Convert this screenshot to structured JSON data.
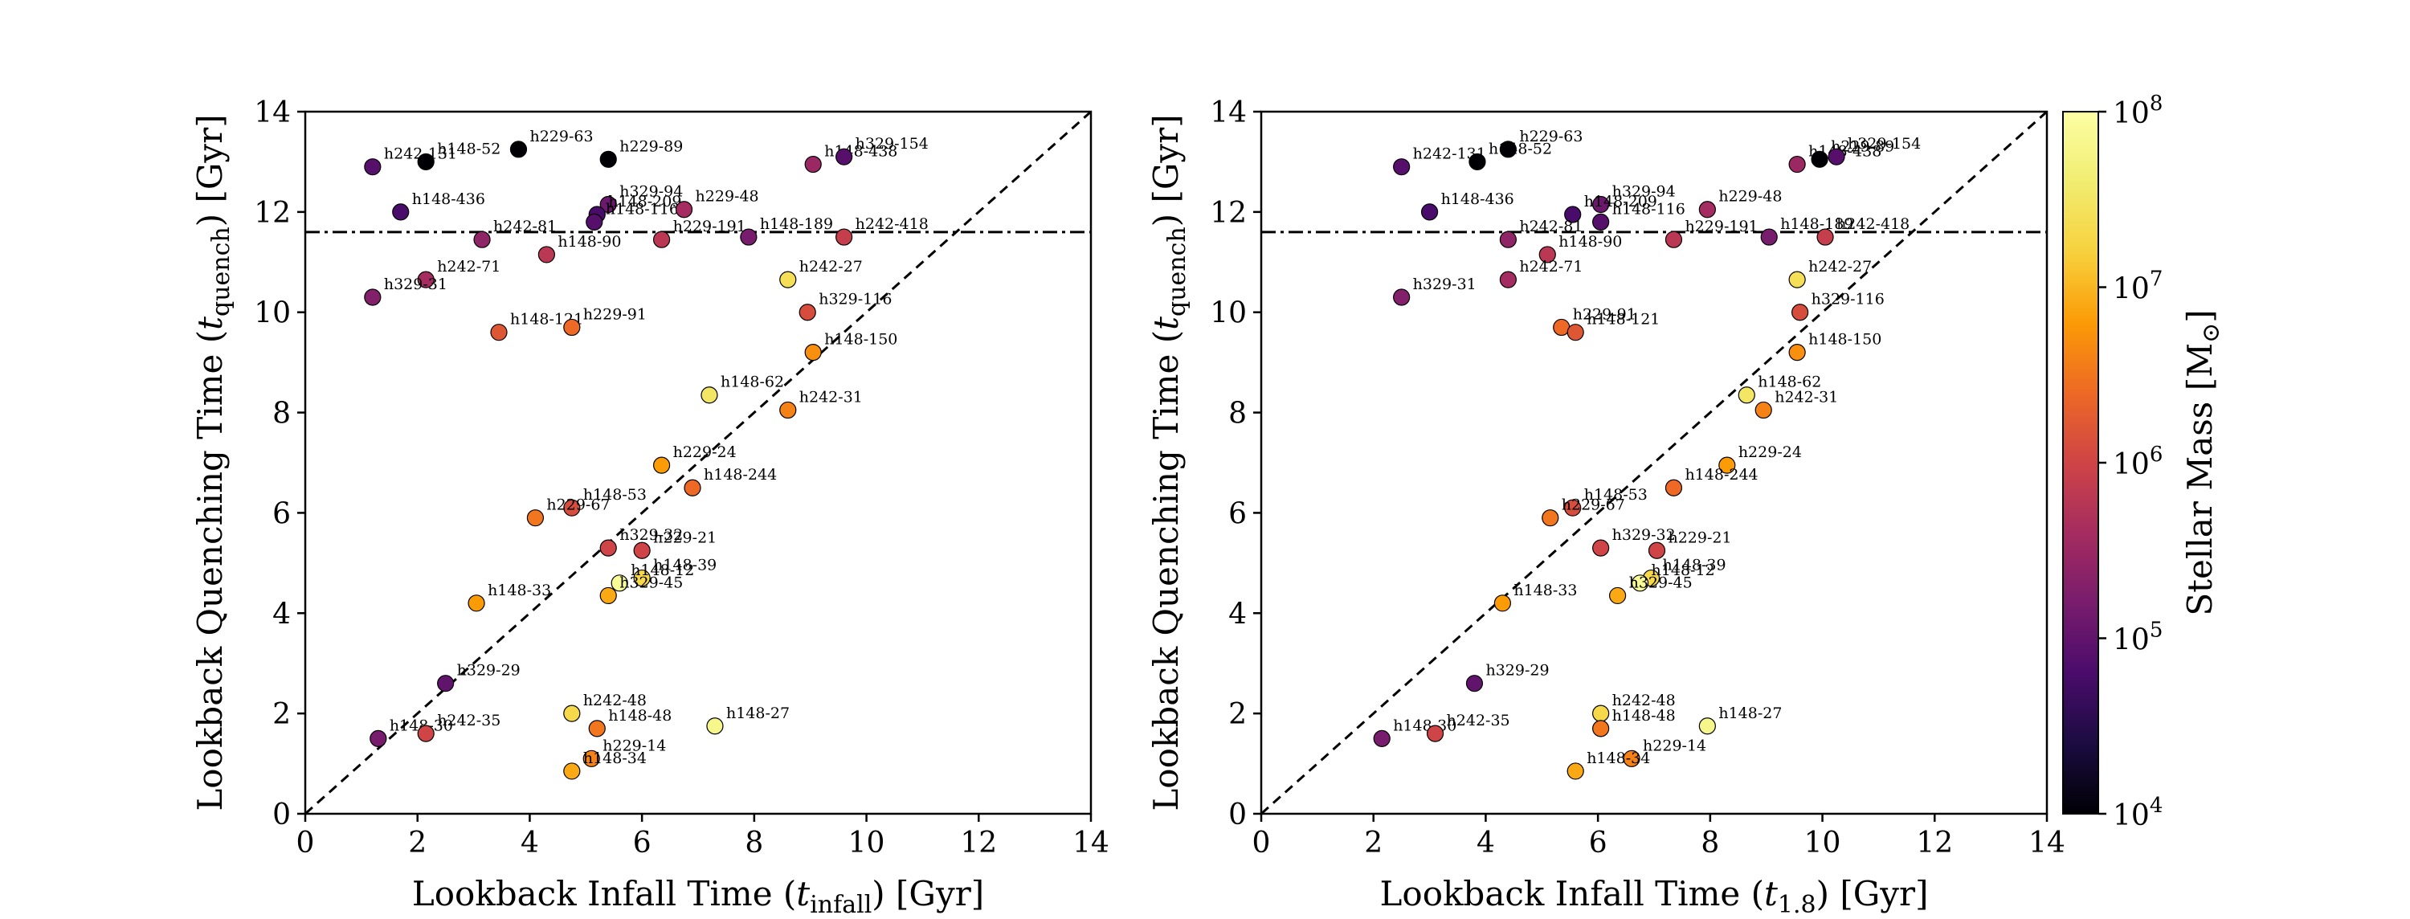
{
  "chart_data": [
    {
      "type": "scatter",
      "panel": "left",
      "xlabel_main": "Lookback Infall Time (",
      "xlabel_sym": "t",
      "xlabel_sub": "infall",
      "xlabel_tail": ") [Gyr]",
      "ylabel_main": "Lookback Quenching Time (",
      "ylabel_sym": "t",
      "ylabel_sub": "quench",
      "ylabel_tail": ") [Gyr]",
      "xlim": [
        0,
        14
      ],
      "ylim": [
        0,
        14
      ],
      "xticks": [
        "0",
        "2",
        "4",
        "6",
        "8",
        "10",
        "12",
        "14"
      ],
      "yticks": [
        "0",
        "2",
        "4",
        "6",
        "8",
        "10",
        "12",
        "14"
      ],
      "one_to_one_line": true,
      "horizontal_dashdot_y": 11.6,
      "points": [
        {
          "label": "h242-131",
          "x": 1.2,
          "y": 12.9,
          "logM": 4.9
        },
        {
          "label": "h148-52",
          "x": 2.15,
          "y": 13.0,
          "logM": 4.0
        },
        {
          "label": "h229-63",
          "x": 3.8,
          "y": 13.25,
          "logM": 4.0
        },
        {
          "label": "h229-89",
          "x": 5.4,
          "y": 13.05,
          "logM": 4.0
        },
        {
          "label": "h148-436",
          "x": 1.7,
          "y": 12.0,
          "logM": 4.8
        },
        {
          "label": "h148-438",
          "x": 9.05,
          "y": 12.95,
          "logM": 5.5
        },
        {
          "label": "h329-154",
          "x": 9.6,
          "y": 13.1,
          "logM": 4.9
        },
        {
          "label": "h329-94",
          "x": 5.4,
          "y": 12.15,
          "logM": 5.1
        },
        {
          "label": "h148-209",
          "x": 5.2,
          "y": 11.95,
          "logM": 4.8
        },
        {
          "label": "h148-116",
          "x": 5.15,
          "y": 11.8,
          "logM": 4.9
        },
        {
          "label": "h229-48",
          "x": 6.75,
          "y": 12.05,
          "logM": 5.6
        },
        {
          "label": "h242-81",
          "x": 3.15,
          "y": 11.45,
          "logM": 5.4
        },
        {
          "label": "h148-90",
          "x": 4.3,
          "y": 11.15,
          "logM": 5.8
        },
        {
          "label": "h229-191",
          "x": 6.35,
          "y": 11.45,
          "logM": 5.8
        },
        {
          "label": "h148-189",
          "x": 7.9,
          "y": 11.5,
          "logM": 5.2
        },
        {
          "label": "h242-418",
          "x": 9.6,
          "y": 11.5,
          "logM": 5.9
        },
        {
          "label": "h242-71",
          "x": 2.15,
          "y": 10.65,
          "logM": 5.6
        },
        {
          "label": "h329-31",
          "x": 1.2,
          "y": 10.3,
          "logM": 5.3
        },
        {
          "label": "h242-27",
          "x": 8.6,
          "y": 10.65,
          "logM": 7.4
        },
        {
          "label": "h329-116",
          "x": 8.95,
          "y": 10.0,
          "logM": 6.1
        },
        {
          "label": "h148-121",
          "x": 3.45,
          "y": 9.6,
          "logM": 6.2
        },
        {
          "label": "h229-91",
          "x": 4.75,
          "y": 9.7,
          "logM": 6.4
        },
        {
          "label": "h148-150",
          "x": 9.05,
          "y": 9.2,
          "logM": 6.7
        },
        {
          "label": "h148-62",
          "x": 7.2,
          "y": 8.35,
          "logM": 7.5
        },
        {
          "label": "h242-31",
          "x": 8.6,
          "y": 8.05,
          "logM": 6.6
        },
        {
          "label": "h229-24",
          "x": 6.35,
          "y": 6.95,
          "logM": 6.8
        },
        {
          "label": "h148-244",
          "x": 6.9,
          "y": 6.5,
          "logM": 6.4
        },
        {
          "label": "h148-53",
          "x": 4.75,
          "y": 6.1,
          "logM": 6.1
        },
        {
          "label": "h229-67",
          "x": 4.1,
          "y": 5.9,
          "logM": 6.5
        },
        {
          "label": "h329-32",
          "x": 5.4,
          "y": 5.3,
          "logM": 6.0
        },
        {
          "label": "h229-21",
          "x": 6.0,
          "y": 5.25,
          "logM": 6.0
        },
        {
          "label": "h148-39",
          "x": 6.0,
          "y": 4.7,
          "logM": 7.3
        },
        {
          "label": "h148-12",
          "x": 5.6,
          "y": 4.6,
          "logM": 7.9
        },
        {
          "label": "h329-45",
          "x": 5.4,
          "y": 4.35,
          "logM": 6.9
        },
        {
          "label": "h148-33",
          "x": 3.05,
          "y": 4.2,
          "logM": 6.8
        },
        {
          "label": "h329-29",
          "x": 2.5,
          "y": 2.6,
          "logM": 5.0
        },
        {
          "label": "h148-30",
          "x": 1.3,
          "y": 1.5,
          "logM": 5.2
        },
        {
          "label": "h242-35",
          "x": 2.15,
          "y": 1.6,
          "logM": 6.0
        },
        {
          "label": "h242-48",
          "x": 4.75,
          "y": 2.0,
          "logM": 7.3
        },
        {
          "label": "h148-48",
          "x": 5.2,
          "y": 1.7,
          "logM": 6.5
        },
        {
          "label": "h148-27",
          "x": 7.3,
          "y": 1.75,
          "logM": 7.8
        },
        {
          "label": "h229-14",
          "x": 5.1,
          "y": 1.1,
          "logM": 6.6
        },
        {
          "label": "h148-34",
          "x": 4.75,
          "y": 0.85,
          "logM": 6.9
        }
      ]
    },
    {
      "type": "scatter",
      "panel": "right",
      "xlabel_main": "Lookback Infall Time (",
      "xlabel_sym": "t",
      "xlabel_sub": "1.8",
      "xlabel_tail": ") [Gyr]",
      "ylabel_main": "Lookback Quenching Time (",
      "ylabel_sym": "t",
      "ylabel_sub": "quench",
      "ylabel_tail": ") [Gyr]",
      "xlim": [
        0,
        14
      ],
      "ylim": [
        0,
        14
      ],
      "xticks": [
        "0",
        "2",
        "4",
        "6",
        "8",
        "10",
        "12",
        "14"
      ],
      "yticks": [
        "0",
        "2",
        "4",
        "6",
        "8",
        "10",
        "12",
        "14"
      ],
      "one_to_one_line": true,
      "horizontal_dashdot_y": 11.6,
      "points": [
        {
          "label": "h242-131",
          "x": 2.5,
          "y": 12.9,
          "logM": 4.9
        },
        {
          "label": "h148-52",
          "x": 3.85,
          "y": 13.0,
          "logM": 4.0
        },
        {
          "label": "h229-63",
          "x": 4.4,
          "y": 13.25,
          "logM": 4.0
        },
        {
          "label": "h148-436",
          "x": 3.0,
          "y": 12.0,
          "logM": 4.8
        },
        {
          "label": "h148-438",
          "x": 9.55,
          "y": 12.95,
          "logM": 5.5
        },
        {
          "label": "h229-89",
          "x": 9.95,
          "y": 13.05,
          "logM": 4.0
        },
        {
          "label": "h329-154",
          "x": 10.25,
          "y": 13.1,
          "logM": 4.9
        },
        {
          "label": "h329-94",
          "x": 6.05,
          "y": 12.15,
          "logM": 5.1
        },
        {
          "label": "h148-209",
          "x": 5.55,
          "y": 11.95,
          "logM": 4.8
        },
        {
          "label": "h148-116",
          "x": 6.05,
          "y": 11.8,
          "logM": 4.9
        },
        {
          "label": "h229-48",
          "x": 7.95,
          "y": 12.05,
          "logM": 5.6
        },
        {
          "label": "h242-81",
          "x": 4.4,
          "y": 11.45,
          "logM": 5.4
        },
        {
          "label": "h148-90",
          "x": 5.1,
          "y": 11.15,
          "logM": 5.8
        },
        {
          "label": "h229-191",
          "x": 7.35,
          "y": 11.45,
          "logM": 5.8
        },
        {
          "label": "h148-189",
          "x": 9.05,
          "y": 11.5,
          "logM": 5.2
        },
        {
          "label": "h242-418",
          "x": 10.05,
          "y": 11.5,
          "logM": 5.9
        },
        {
          "label": "h242-71",
          "x": 4.4,
          "y": 10.65,
          "logM": 5.6
        },
        {
          "label": "h329-31",
          "x": 2.5,
          "y": 10.3,
          "logM": 5.3
        },
        {
          "label": "h242-27",
          "x": 9.55,
          "y": 10.65,
          "logM": 7.4
        },
        {
          "label": "h329-116",
          "x": 9.6,
          "y": 10.0,
          "logM": 6.1
        },
        {
          "label": "h229-91",
          "x": 5.35,
          "y": 9.7,
          "logM": 6.4
        },
        {
          "label": "h148-121",
          "x": 5.6,
          "y": 9.6,
          "logM": 6.2
        },
        {
          "label": "h148-150",
          "x": 9.55,
          "y": 9.2,
          "logM": 6.7
        },
        {
          "label": "h148-62",
          "x": 8.65,
          "y": 8.35,
          "logM": 7.5
        },
        {
          "label": "h242-31",
          "x": 8.95,
          "y": 8.05,
          "logM": 6.6
        },
        {
          "label": "h229-24",
          "x": 8.3,
          "y": 6.95,
          "logM": 6.8
        },
        {
          "label": "h148-244",
          "x": 7.35,
          "y": 6.5,
          "logM": 6.4
        },
        {
          "label": "h148-53",
          "x": 5.55,
          "y": 6.1,
          "logM": 6.1
        },
        {
          "label": "h229-67",
          "x": 5.15,
          "y": 5.9,
          "logM": 6.5
        },
        {
          "label": "h329-32",
          "x": 6.05,
          "y": 5.3,
          "logM": 6.0
        },
        {
          "label": "h229-21",
          "x": 7.05,
          "y": 5.25,
          "logM": 6.0
        },
        {
          "label": "h148-39",
          "x": 6.95,
          "y": 4.7,
          "logM": 7.3
        },
        {
          "label": "h148-12",
          "x": 6.75,
          "y": 4.6,
          "logM": 7.9
        },
        {
          "label": "h329-45",
          "x": 6.35,
          "y": 4.35,
          "logM": 6.9
        },
        {
          "label": "h148-33",
          "x": 4.3,
          "y": 4.2,
          "logM": 6.8
        },
        {
          "label": "h329-29",
          "x": 3.8,
          "y": 2.6,
          "logM": 5.0
        },
        {
          "label": "h148-30",
          "x": 2.15,
          "y": 1.5,
          "logM": 5.2
        },
        {
          "label": "h242-35",
          "x": 3.1,
          "y": 1.6,
          "logM": 6.0
        },
        {
          "label": "h242-48",
          "x": 6.05,
          "y": 2.0,
          "logM": 7.3
        },
        {
          "label": "h148-48",
          "x": 6.05,
          "y": 1.7,
          "logM": 6.5
        },
        {
          "label": "h148-27",
          "x": 7.95,
          "y": 1.75,
          "logM": 7.8
        },
        {
          "label": "h229-14",
          "x": 6.6,
          "y": 1.1,
          "logM": 6.6
        },
        {
          "label": "h148-34",
          "x": 5.6,
          "y": 0.85,
          "logM": 6.9
        }
      ]
    }
  ],
  "colorbar": {
    "label_main": "Stellar Mass [M",
    "label_sub": "⊙",
    "label_tail": "]",
    "scale": "log",
    "colormap": "inferno",
    "range_log": [
      4,
      8
    ],
    "ticks": [
      {
        "base": "10",
        "exp": "4"
      },
      {
        "base": "10",
        "exp": "5"
      },
      {
        "base": "10",
        "exp": "6"
      },
      {
        "base": "10",
        "exp": "7"
      },
      {
        "base": "10",
        "exp": "8"
      }
    ]
  }
}
